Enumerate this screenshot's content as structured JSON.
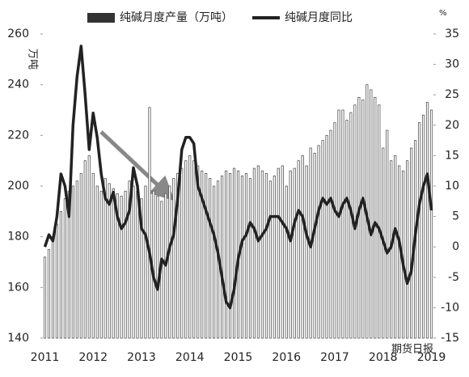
{
  "chart_data": {
    "type": "bar",
    "y_label": "万吨",
    "y2_label": "%",
    "watermark": "期货日报",
    "categories": [
      "2011",
      null,
      null,
      null,
      null,
      null,
      null,
      null,
      null,
      null,
      null,
      null,
      "2012",
      null,
      null,
      null,
      null,
      null,
      null,
      null,
      null,
      null,
      null,
      null,
      "2013",
      null,
      null,
      null,
      null,
      null,
      null,
      null,
      null,
      null,
      null,
      null,
      "2014",
      null,
      null,
      null,
      null,
      null,
      null,
      null,
      null,
      null,
      null,
      null,
      "2015",
      null,
      null,
      null,
      null,
      null,
      null,
      null,
      null,
      null,
      null,
      null,
      "2016",
      null,
      null,
      null,
      null,
      null,
      null,
      null,
      null,
      null,
      null,
      null,
      "2017",
      null,
      null,
      null,
      null,
      null,
      null,
      null,
      null,
      null,
      null,
      null,
      "2018",
      null,
      null,
      null,
      null,
      null,
      null,
      null,
      null,
      null,
      null,
      null,
      "2019"
    ],
    "series": [
      {
        "name": "纯碱月度产量（万吨）",
        "type": "bar",
        "color": "#555555",
        "values": [
          172,
          175,
          180,
          185,
          190,
          195,
          198,
          200,
          202,
          205,
          210,
          212,
          205,
          200,
          198,
          203,
          201,
          199,
          197,
          196,
          198,
          202,
          200,
          198,
          195,
          200,
          231,
          198,
          196,
          194,
          197,
          200,
          203,
          205,
          207,
          210,
          212,
          210,
          208,
          206,
          205,
          203,
          200,
          202,
          204,
          206,
          205,
          207,
          206,
          204,
          205,
          203,
          207,
          208,
          206,
          205,
          202,
          204,
          207,
          208,
          200,
          206,
          207,
          210,
          212,
          208,
          215,
          213,
          216,
          218,
          220,
          222,
          225,
          230,
          230,
          226,
          229,
          232,
          235,
          234,
          240,
          238,
          235,
          232,
          215,
          222,
          210,
          212,
          208,
          206,
          210,
          215,
          218,
          225,
          228,
          233,
          230
        ]
      },
      {
        "name": "纯碱月度同比",
        "type": "line",
        "axis": "y2",
        "color": "#222222",
        "values": [
          0,
          2,
          1,
          5,
          12,
          10,
          5,
          20,
          28,
          33,
          25,
          16,
          22,
          18,
          12,
          8,
          7,
          9,
          5,
          3,
          4,
          6,
          13,
          10,
          3,
          2,
          -1,
          -5,
          -7,
          -2,
          -3,
          0,
          2,
          8,
          16,
          18,
          18,
          17,
          10,
          8,
          6,
          4,
          2,
          -1,
          -5,
          -9,
          -10,
          -7,
          -2,
          1,
          2,
          4,
          3,
          1,
          2,
          3,
          5,
          5,
          5,
          4,
          3,
          1,
          4,
          6,
          5,
          2,
          0,
          3,
          6,
          8,
          7,
          8,
          6,
          5,
          7,
          8,
          6,
          3,
          6,
          8,
          5,
          2,
          4,
          3,
          1,
          -1,
          0,
          3,
          1,
          -3,
          -6,
          -4,
          2,
          7,
          10,
          12,
          6
        ]
      }
    ],
    "ylim": [
      140,
      260
    ],
    "yticks": [
      140,
      160,
      180,
      200,
      220,
      240,
      260
    ],
    "y2lim": [
      -15,
      35
    ],
    "y2ticks": [
      -15,
      -10,
      -5,
      0,
      5,
      10,
      15,
      20,
      25,
      30,
      35
    ],
    "grid": false
  }
}
